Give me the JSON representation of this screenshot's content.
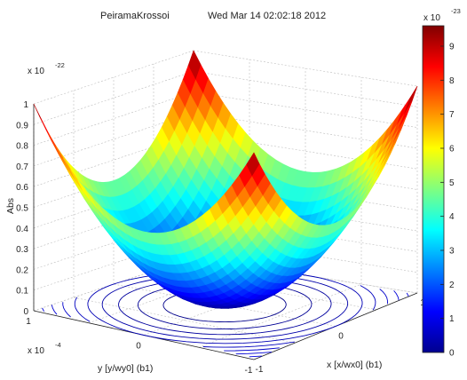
{
  "chart_data": {
    "type": "surface",
    "title_name": "PeiramaKrossoi",
    "title_date": "Wed Mar 14 02:02:18 2012",
    "xlabel": "x [x/wx0] (b1)",
    "ylabel": "y [y/wy0] (b1)",
    "zlabel": "Abs",
    "x_tick_labels": [
      "-1",
      "0",
      "1"
    ],
    "x_range": [
      -1,
      1
    ],
    "y_tick_labels": [
      "-1",
      "0",
      "1"
    ],
    "y_range": [
      -1,
      1
    ],
    "y_multiplier": "x 10",
    "y_multiplier_exp": "-4",
    "z_tick_labels": [
      "0",
      "0.1",
      "0.2",
      "0.3",
      "0.4",
      "0.5",
      "0.6",
      "0.7",
      "0.8",
      "0.9",
      "1"
    ],
    "z_range": [
      0,
      1
    ],
    "z_multiplier": "x 10",
    "z_multiplier_exp": "-22",
    "surface_function": "z = (x^2 + y^2) / 2",
    "contour_levels": [
      0.1,
      0.2,
      0.3,
      0.4,
      0.5,
      0.6,
      0.7,
      0.8,
      0.9
    ],
    "colorbar": {
      "tick_labels": [
        "0",
        "1",
        "2",
        "3",
        "4",
        "5",
        "6",
        "7",
        "8",
        "9"
      ],
      "range": [
        0,
        9.6
      ],
      "multiplier": "x 10",
      "multiplier_exp": "-23",
      "colormap": "jet"
    },
    "grid": true,
    "colormap": [
      "#00008f",
      "#0000ff",
      "#00ffff",
      "#ffff00",
      "#ff0000",
      "#800000"
    ]
  }
}
